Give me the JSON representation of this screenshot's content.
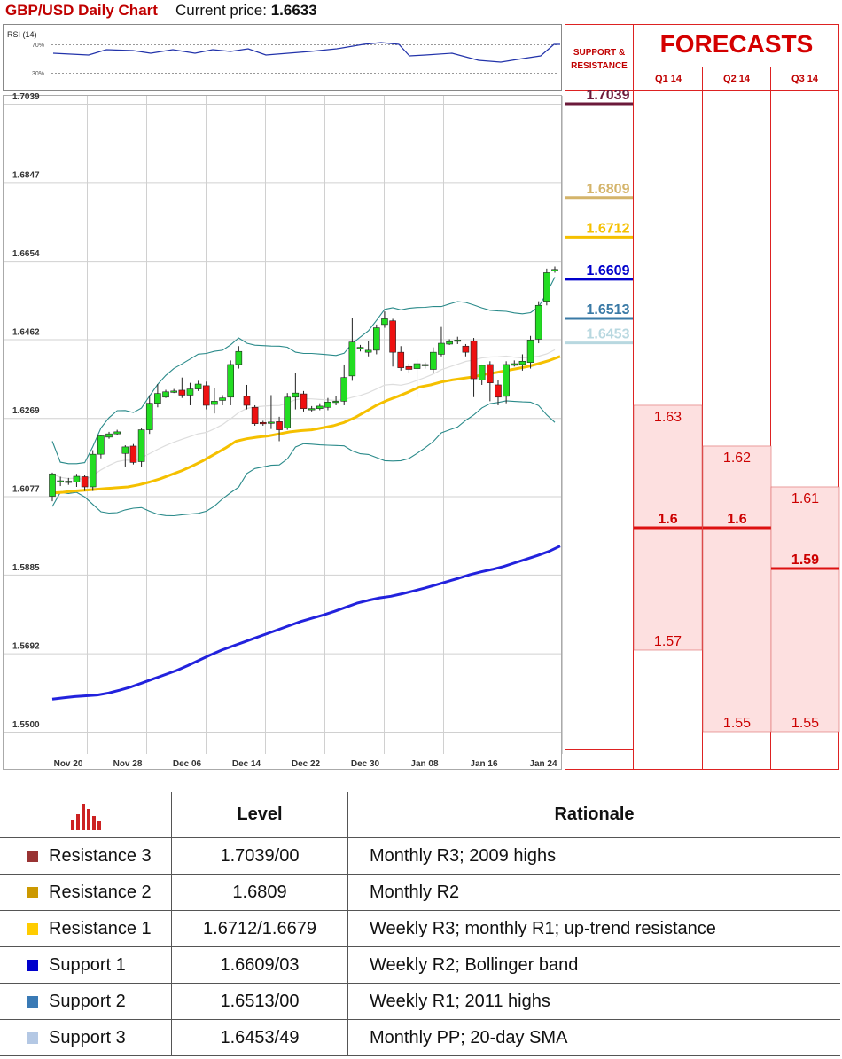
{
  "header": {
    "title": "GBP/USD Daily Chart",
    "price_label": "Current price:",
    "price": "1.6633"
  },
  "support_resistance_header": [
    "SUPPORT &",
    "RESISTANCE"
  ],
  "forecasts": {
    "title": "FORECASTS",
    "quarters": [
      "Q1 14",
      "Q2 14",
      "Q3 14"
    ],
    "ranges": [
      {
        "high": 1.63,
        "mid": 1.6,
        "low": 1.57,
        "high_label": "1.63",
        "mid_label": "1.6",
        "low_label": "1.57"
      },
      {
        "high": 1.62,
        "mid": 1.6,
        "low": 1.55,
        "high_label": "1.62",
        "mid_label": "1.6",
        "low_label": "1.55"
      },
      {
        "high": 1.61,
        "mid": 1.59,
        "low": 1.55,
        "high_label": "1.61",
        "mid_label": "1.59",
        "low_label": "1.55"
      }
    ]
  },
  "levels": [
    {
      "value": 1.7039,
      "label": "1.7039",
      "color": "#6b1a3a"
    },
    {
      "value": 1.6809,
      "label": "1.6809",
      "color": "#d4b46a"
    },
    {
      "value": 1.6712,
      "label": "1.6712",
      "color": "#f5c000"
    },
    {
      "value": 1.6609,
      "label": "1.6609",
      "color": "#0000cc"
    },
    {
      "value": 1.6513,
      "label": "1.6513",
      "color": "#3a7aa6"
    },
    {
      "value": 1.6453,
      "label": "1.6453",
      "color": "#b8d8e0"
    }
  ],
  "chart_data": {
    "type": "line",
    "title": "GBP/USD Daily Chart",
    "y_ticks": [
      "1.7039",
      "1.6847",
      "1.6654",
      "1.6462",
      "1.6269",
      "1.6077",
      "1.5885",
      "1.5692",
      "1.5500"
    ],
    "ylim": [
      1.55,
      1.7039
    ],
    "x_ticks": [
      "Nov 20",
      "Nov 28",
      "Dec 06",
      "Dec 14",
      "Dec 22",
      "Dec 30",
      "Jan 08",
      "Jan 16",
      "Jan 24"
    ],
    "grid": true,
    "candles": [
      [
        1.6077,
        1.6132,
        1.6065,
        1.6135
      ],
      [
        1.6112,
        1.6115,
        1.6102,
        1.6125
      ],
      [
        1.6114,
        1.6114,
        1.6105,
        1.6122
      ],
      [
        1.6112,
        1.6126,
        1.61,
        1.6132
      ],
      [
        1.6125,
        1.61,
        1.609,
        1.613
      ],
      [
        1.61,
        1.618,
        1.609,
        1.619
      ],
      [
        1.618,
        1.6225,
        1.617,
        1.6228
      ],
      [
        1.6222,
        1.623,
        1.6218,
        1.6235
      ],
      [
        1.623,
        1.6235,
        1.6228,
        1.624
      ],
      [
        1.6182,
        1.6198,
        1.615,
        1.6202
      ],
      [
        1.62,
        1.616,
        1.6155,
        1.6205
      ],
      [
        1.6162,
        1.624,
        1.615,
        1.6245
      ],
      [
        1.624,
        1.6305,
        1.623,
        1.6325
      ],
      [
        1.6305,
        1.6329,
        1.6295,
        1.6352
      ],
      [
        1.632,
        1.6333,
        1.6318,
        1.6338
      ],
      [
        1.6332,
        1.6335,
        1.633,
        1.634
      ],
      [
        1.6337,
        1.6325,
        1.6318,
        1.6368
      ],
      [
        1.6325,
        1.634,
        1.63,
        1.6355
      ],
      [
        1.634,
        1.6352,
        1.6335,
        1.636
      ],
      [
        1.6348,
        1.63,
        1.629,
        1.6358
      ],
      [
        1.6302,
        1.631,
        1.628,
        1.6342
      ],
      [
        1.6312,
        1.6318,
        1.63,
        1.6325
      ],
      [
        1.632,
        1.64,
        1.63,
        1.641
      ],
      [
        1.64,
        1.6432,
        1.639,
        1.6445
      ],
      [
        1.6322,
        1.63,
        1.629,
        1.635
      ],
      [
        1.6295,
        1.6255,
        1.625,
        1.63
      ],
      [
        1.6258,
        1.6256,
        1.625,
        1.6262
      ],
      [
        1.6257,
        1.6259,
        1.6242,
        1.6325
      ],
      [
        1.626,
        1.624,
        1.6212,
        1.6272
      ],
      [
        1.6245,
        1.632,
        1.624,
        1.633
      ],
      [
        1.632,
        1.633,
        1.629,
        1.638
      ],
      [
        1.6328,
        1.6292,
        1.6285,
        1.6335
      ],
      [
        1.629,
        1.6292,
        1.6285,
        1.6298
      ],
      [
        1.6292,
        1.6298,
        1.6288,
        1.6305
      ],
      [
        1.6295,
        1.6308,
        1.6288,
        1.6318
      ],
      [
        1.6308,
        1.631,
        1.63,
        1.6322
      ],
      [
        1.631,
        1.6368,
        1.63,
        1.64
      ],
      [
        1.6372,
        1.6455,
        1.636,
        1.6515
      ],
      [
        1.644,
        1.6442,
        1.6432,
        1.6448
      ],
      [
        1.643,
        1.6435,
        1.642,
        1.6458
      ],
      [
        1.6435,
        1.649,
        1.6425,
        1.6498
      ],
      [
        1.6498,
        1.6512,
        1.649,
        1.653
      ],
      [
        1.6507,
        1.643,
        1.6395,
        1.6512
      ],
      [
        1.643,
        1.6392,
        1.6385,
        1.6445
      ],
      [
        1.6395,
        1.6388,
        1.638,
        1.6402
      ],
      [
        1.639,
        1.6402,
        1.632,
        1.6412
      ],
      [
        1.6398,
        1.64,
        1.639,
        1.6405
      ],
      [
        1.6388,
        1.643,
        1.638,
        1.6442
      ],
      [
        1.6425,
        1.6452,
        1.642,
        1.6492
      ],
      [
        1.645,
        1.6456,
        1.6448,
        1.6462
      ],
      [
        1.6458,
        1.646,
        1.645,
        1.6468
      ],
      [
        1.6445,
        1.643,
        1.642,
        1.645
      ],
      [
        1.6458,
        1.6365,
        1.632,
        1.6465
      ],
      [
        1.6362,
        1.6398,
        1.635,
        1.64
      ],
      [
        1.64,
        1.6355,
        1.631,
        1.6408
      ],
      [
        1.635,
        1.632,
        1.63,
        1.6362
      ],
      [
        1.6322,
        1.64,
        1.6305,
        1.6408
      ],
      [
        1.6398,
        1.6402,
        1.6395,
        1.641
      ],
      [
        1.64,
        1.6408,
        1.6385,
        1.6425
      ],
      [
        1.6405,
        1.646,
        1.639,
        1.647
      ],
      [
        1.6462,
        1.6545,
        1.6452,
        1.6555
      ],
      [
        1.6555,
        1.6625,
        1.6545,
        1.6635
      ],
      [
        1.663,
        1.6633,
        1.6625,
        1.664
      ]
    ],
    "series": [
      {
        "name": "",
        "color": "#f5c000",
        "values": [
          1.6085,
          1.6087,
          1.609,
          1.6092,
          1.6094,
          1.6096,
          1.6098,
          1.61,
          1.6105,
          1.6112,
          1.612,
          1.613,
          1.614,
          1.6152,
          1.6165,
          1.618,
          1.6195,
          1.6212,
          1.6218,
          1.6222,
          1.6225,
          1.623,
          1.6235,
          1.6238,
          1.624,
          1.6245,
          1.625,
          1.6258,
          1.627,
          1.6285,
          1.63,
          1.6312,
          1.6322,
          1.6333,
          1.6345,
          1.635,
          1.6357,
          1.6362,
          1.6366,
          1.637,
          1.6376,
          1.638,
          1.6385,
          1.639,
          1.6395,
          1.6402,
          1.641,
          1.642
        ]
      },
      {
        "name": "",
        "color": "#2222dd",
        "values": [
          1.558,
          1.5583,
          1.5586,
          1.5588,
          1.559,
          1.5595,
          1.5602,
          1.561,
          1.562,
          1.563,
          1.564,
          1.565,
          1.5662,
          1.5675,
          1.5688,
          1.57,
          1.571,
          1.572,
          1.573,
          1.574,
          1.575,
          1.576,
          1.577,
          1.5778,
          1.5786,
          1.5795,
          1.5805,
          1.5815,
          1.5822,
          1.5828,
          1.5832,
          1.5838,
          1.5845,
          1.5852,
          1.586,
          1.5868,
          1.5876,
          1.5885,
          1.5892,
          1.5898,
          1.5905,
          1.5914,
          1.5923,
          1.5932,
          1.5942,
          1.5955
        ]
      }
    ]
  },
  "table": {
    "headers": [
      "Level",
      "Rationale"
    ],
    "rows": [
      {
        "name": "Resistance 3",
        "color": "#993333",
        "level": "1.7039/00",
        "rationale": "Monthly R3; 2009 highs"
      },
      {
        "name": "Resistance 2",
        "color": "#cc9900",
        "level": "1.6809",
        "rationale": "Monthly R2"
      },
      {
        "name": "Resistance 1",
        "color": "#ffcc00",
        "level": "1.6712/1.6679",
        "rationale": "Weekly R3; monthly R1; up-trend resistance"
      },
      {
        "name": "Support 1",
        "color": "#0000cc",
        "level": "1.6609/03",
        "rationale": "Weekly R2; Bollinger band"
      },
      {
        "name": "Support 2",
        "color": "#3a7ab5",
        "level": "1.6513/00",
        "rationale": "Weekly R1; 2011 highs"
      },
      {
        "name": "Support 3",
        "color": "#b4c8e4",
        "level": "1.6453/49",
        "rationale": "Monthly PP; 20-day SMA"
      }
    ]
  }
}
